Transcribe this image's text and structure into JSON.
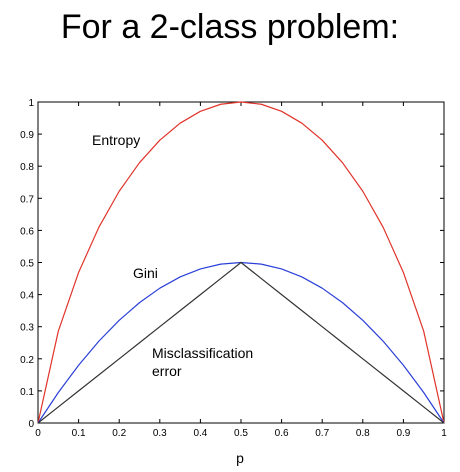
{
  "slide": {
    "title": "For a 2-class problem:"
  },
  "chart_data": {
    "type": "line",
    "xlabel": "p",
    "ylabel": "",
    "xlim": [
      0,
      1
    ],
    "ylim": [
      0,
      1
    ],
    "xticks": [
      "0",
      "0.1",
      "0.2",
      "0.3",
      "0.4",
      "0.5",
      "0.6",
      "0.7",
      "0.8",
      "0.9",
      "1"
    ],
    "yticks": [
      "0",
      "0.1",
      "0.2",
      "0.3",
      "0.4",
      "0.5",
      "0.6",
      "0.7",
      "0.8",
      "0.9",
      "1"
    ],
    "grid": false,
    "x": [
      0,
      0.05,
      0.1,
      0.15,
      0.2,
      0.25,
      0.3,
      0.35,
      0.4,
      0.45,
      0.5,
      0.55,
      0.6,
      0.65,
      0.7,
      0.75,
      0.8,
      0.85,
      0.9,
      0.95,
      1
    ],
    "series": [
      {
        "name": "Entropy",
        "color": "#e0342a",
        "values": [
          0,
          0.286,
          0.469,
          0.61,
          0.722,
          0.811,
          0.881,
          0.934,
          0.971,
          0.993,
          1,
          0.993,
          0.971,
          0.934,
          0.881,
          0.811,
          0.722,
          0.61,
          0.469,
          0.286,
          0
        ]
      },
      {
        "name": "Gini",
        "color": "#2a3fd8",
        "values": [
          0,
          0.095,
          0.18,
          0.255,
          0.32,
          0.375,
          0.42,
          0.455,
          0.48,
          0.495,
          0.5,
          0.495,
          0.48,
          0.455,
          0.42,
          0.375,
          0.32,
          0.255,
          0.18,
          0.095,
          0
        ]
      },
      {
        "name": "Misclassification error",
        "color": "#333333",
        "values": [
          0,
          0.05,
          0.1,
          0.15,
          0.2,
          0.25,
          0.3,
          0.35,
          0.4,
          0.45,
          0.5,
          0.45,
          0.4,
          0.35,
          0.3,
          0.25,
          0.2,
          0.15,
          0.1,
          0.05,
          0
        ]
      }
    ],
    "annotations": {
      "entropy": "Entropy",
      "gini": "Gini",
      "misclass_line1": "Misclassification",
      "misclass_line2": "error"
    }
  }
}
